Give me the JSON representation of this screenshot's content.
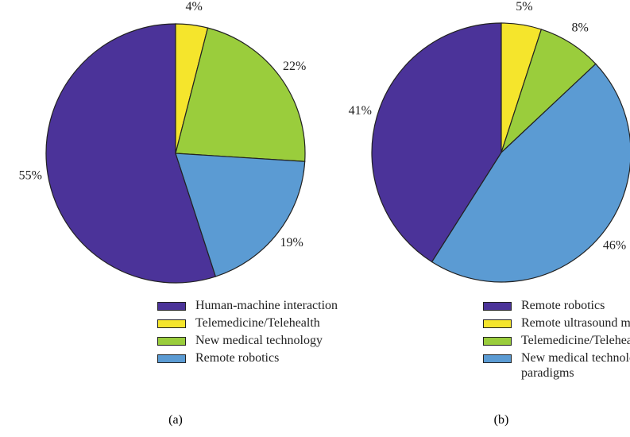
{
  "chart_data": [
    {
      "type": "pie",
      "caption": "(a)",
      "categories": [
        "Human-machine interaction",
        "Telemedicine/Telehealth",
        "New medical technology",
        "Remote robotics"
      ],
      "values": [
        55,
        4,
        22,
        19
      ],
      "value_labels": [
        "55%",
        "4%",
        "22%",
        "19%"
      ],
      "colors": [
        "#4b3399",
        "#f5e52c",
        "#9acd3c",
        "#5b9bd3"
      ]
    },
    {
      "type": "pie",
      "caption": "(b)",
      "categories": [
        "Remote robotics",
        "Remote ultrasound medicine",
        "Telemedicine/Telehealth",
        "New medical technological paradigms"
      ],
      "values": [
        41,
        5,
        8,
        46
      ],
      "value_labels": [
        "41%",
        "5%",
        "8%",
        "46%"
      ],
      "colors": [
        "#4b3399",
        "#f5e52c",
        "#9acd3c",
        "#5b9bd3"
      ]
    }
  ]
}
